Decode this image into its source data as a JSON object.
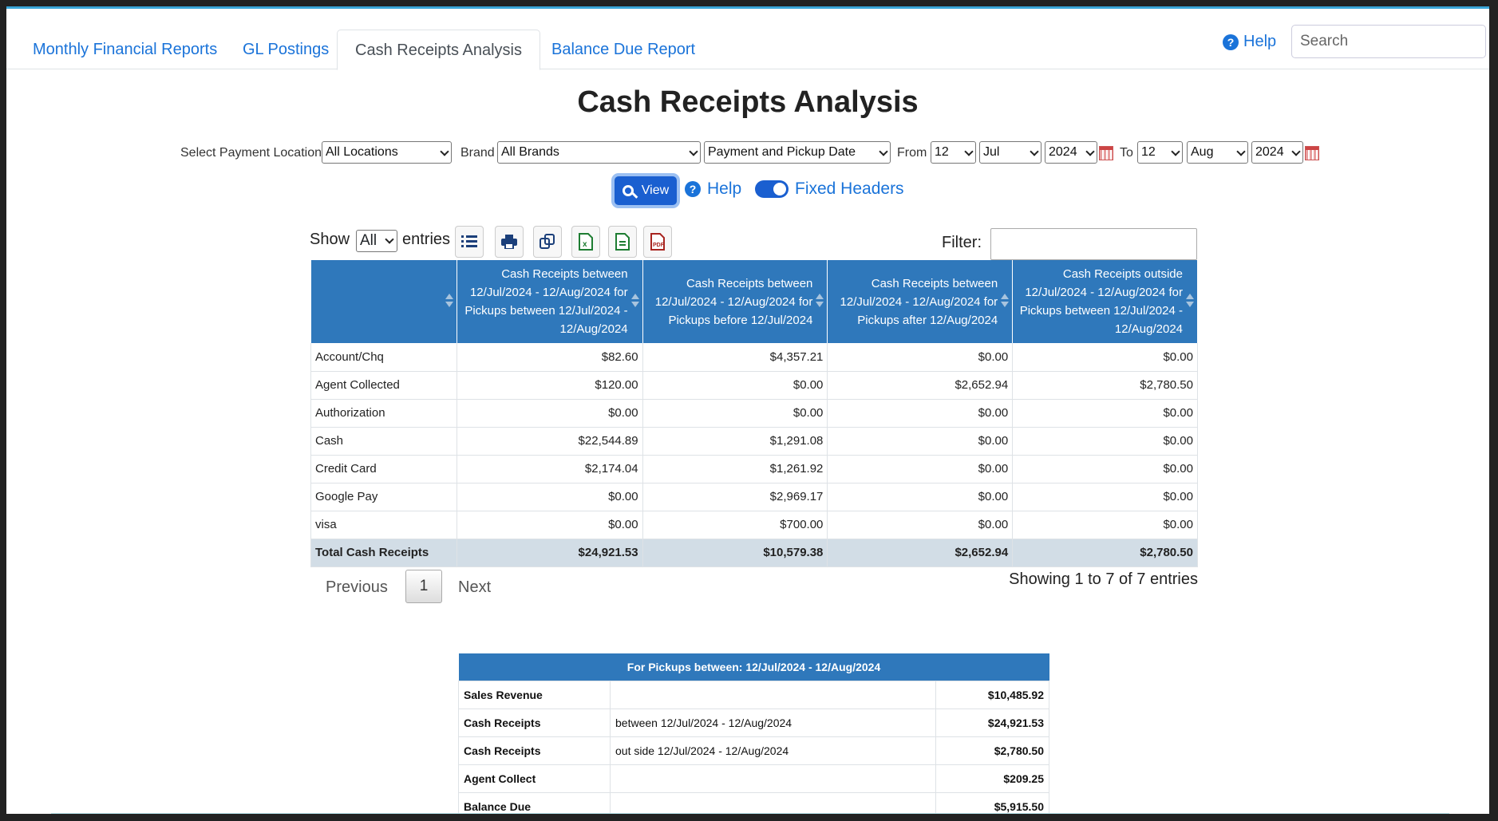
{
  "tabs": [
    {
      "label": "Monthly Financial Reports"
    },
    {
      "label": "GL Postings"
    },
    {
      "label": "Cash Receipts Analysis"
    },
    {
      "label": "Balance Due Report"
    }
  ],
  "header": {
    "help_label": "Help",
    "search_placeholder": "Search"
  },
  "page_title": "Cash Receipts Analysis",
  "filters": {
    "payment_location_label": "Select Payment Location",
    "payment_location_value": "All Locations",
    "brand_label": "Brand",
    "brand_value": "All Brands",
    "date_type_value": "Payment and Pickup Date",
    "from_label": "From",
    "from_day": "12",
    "from_month": "Jul",
    "from_year": "2024",
    "to_label": "To",
    "to_day": "12",
    "to_month": "Aug",
    "to_year": "2024"
  },
  "actions": {
    "view_label": "View",
    "help_label": "Help",
    "fixed_headers_label": "Fixed Headers",
    "fixed_headers_on": true
  },
  "table_controls": {
    "show_label": "Show",
    "show_value": "All",
    "entries_label": "entries",
    "filter_label": "Filter:"
  },
  "main_table": {
    "headers": [
      "",
      "Cash Receipts between 12/Jul/2024 - 12/Aug/2024 for Pickups between 12/Jul/2024 - 12/Aug/2024",
      "Cash Receipts between 12/Jul/2024 - 12/Aug/2024 for Pickups before 12/Jul/2024",
      "Cash Receipts between 12/Jul/2024 - 12/Aug/2024 for Pickups after 12/Aug/2024",
      "Cash Receipts outside 12/Jul/2024 - 12/Aug/2024 for Pickups between 12/Jul/2024 - 12/Aug/2024"
    ],
    "rows": [
      [
        "Account/Chq",
        "$82.60",
        "$4,357.21",
        "$0.00",
        "$0.00"
      ],
      [
        "Agent Collected",
        "$120.00",
        "$0.00",
        "$2,652.94",
        "$2,780.50"
      ],
      [
        "Authorization",
        "$0.00",
        "$0.00",
        "$0.00",
        "$0.00"
      ],
      [
        "Cash",
        "$22,544.89",
        "$1,291.08",
        "$0.00",
        "$0.00"
      ],
      [
        "Credit Card",
        "$2,174.04",
        "$1,261.92",
        "$0.00",
        "$0.00"
      ],
      [
        "Google Pay",
        "$0.00",
        "$2,969.17",
        "$0.00",
        "$0.00"
      ],
      [
        "visa",
        "$0.00",
        "$700.00",
        "$0.00",
        "$0.00"
      ]
    ],
    "total": [
      "Total Cash Receipts",
      "$24,921.53",
      "$10,579.38",
      "$2,652.94",
      "$2,780.50"
    ]
  },
  "pagination": {
    "prev_label": "Previous",
    "page": "1",
    "next_label": "Next",
    "showing_text": "Showing 1 to 7 of 7 entries"
  },
  "summary": {
    "title": "For Pickups between: 12/Jul/2024 - 12/Aug/2024",
    "rows": [
      [
        "Sales Revenue",
        "",
        "$10,485.92"
      ],
      [
        "Cash Receipts",
        "between 12/Jul/2024 - 12/Aug/2024",
        "$24,921.53"
      ],
      [
        "Cash Receipts",
        "out side 12/Jul/2024 - 12/Aug/2024",
        "$2,780.50"
      ],
      [
        "Agent Collect",
        "",
        "$209.25"
      ],
      [
        "Balance Due",
        "",
        "$5,915.50"
      ]
    ]
  }
}
